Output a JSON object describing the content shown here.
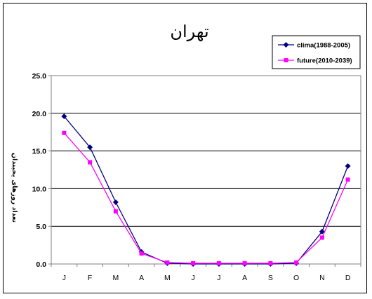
{
  "chart_data": {
    "type": "line",
    "title": "تهران",
    "ylabel": "تعداد روزهای یخبندان",
    "xlabel": "",
    "categories": [
      "J",
      "F",
      "M",
      "A",
      "M",
      "J",
      "J",
      "A",
      "S",
      "O",
      "N",
      "D"
    ],
    "ylim": [
      0,
      25
    ],
    "yticks": [
      "0.0",
      "5.0",
      "10.0",
      "15.0",
      "20.0",
      "25.0"
    ],
    "grid": true,
    "legend_position": "top-right",
    "series": [
      {
        "name": "clima(1988-2005)",
        "color": "#000080",
        "marker": "diamond",
        "values": [
          19.6,
          15.5,
          8.2,
          1.6,
          0.1,
          0.0,
          0.0,
          0.0,
          0.0,
          0.1,
          4.3,
          13.0
        ]
      },
      {
        "name": "future(2010-2039)",
        "color": "#ff00ff",
        "marker": "square",
        "values": [
          17.4,
          13.5,
          7.0,
          1.4,
          0.2,
          0.1,
          0.1,
          0.1,
          0.1,
          0.2,
          3.5,
          11.2
        ]
      }
    ]
  }
}
